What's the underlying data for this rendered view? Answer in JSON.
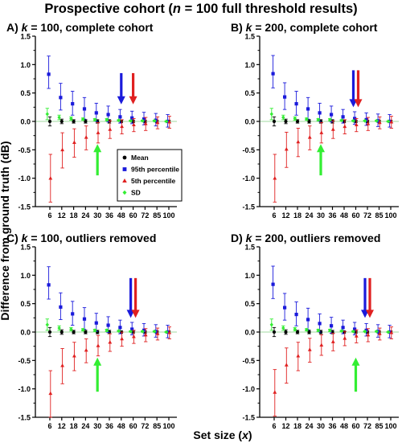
{
  "figure": {
    "title": "Prospective cohort (n = 100 full threshold results)",
    "title_parts": [
      "Prospective cohort (",
      "n",
      " = 100 full threshold results)"
    ],
    "xlabel": "Set size (x)",
    "xlabel_parts": [
      "Set size (",
      "x",
      ")"
    ],
    "ylabel": "Difference from ground truth (dB)"
  },
  "legend": {
    "items": [
      {
        "label": "Mean",
        "color": "#000000",
        "marker": "circle"
      },
      {
        "label": "95th percentile",
        "color": "#1a1adb",
        "marker": "square"
      },
      {
        "label": "5th percentile",
        "color": "#e02020",
        "marker": "triangle"
      },
      {
        "label": "SD",
        "color": "#33ee33",
        "marker": "diamond"
      }
    ]
  },
  "colors": {
    "mean": "#000000",
    "p95": "#1a1adb",
    "p5": "#e02020",
    "sd": "#33ee33",
    "zero_line": "#a0d8a0"
  },
  "chart_data": [
    {
      "type": "scatter",
      "title": "A) k = 100, complete cohort",
      "title_parts": [
        "A) ",
        "k",
        " = 100, complete cohort"
      ],
      "xlabel": "Set size (x)",
      "ylabel": "Difference from ground truth (dB)",
      "categories": [
        "6",
        "12",
        "18",
        "24",
        "30",
        "36",
        "48",
        "60",
        "72",
        "85",
        "100"
      ],
      "ylim": [
        -1.5,
        1.5
      ],
      "yticks": [
        "-1.5",
        "-1.0",
        "-0.5",
        "0.0",
        "0.5",
        "1.0",
        "1.5"
      ],
      "series": [
        {
          "name": "Mean",
          "values": [
            0.0,
            0.0,
            0.0,
            0.0,
            0.0,
            0.0,
            0.0,
            0.0,
            0.0,
            0.0,
            0.0
          ],
          "err_low": [
            0.08,
            0.04,
            0.03,
            0.03,
            0.03,
            0.03,
            0.02,
            0.02,
            0.02,
            0.02,
            0.02
          ],
          "err_high": [
            0.08,
            0.04,
            0.03,
            0.03,
            0.03,
            0.03,
            0.02,
            0.02,
            0.02,
            0.02,
            0.02
          ]
        },
        {
          "name": "95th percentile",
          "values": [
            0.83,
            0.42,
            0.31,
            0.22,
            0.15,
            0.12,
            0.08,
            0.06,
            0.04,
            0.02,
            0.0
          ],
          "err_low": [
            0.25,
            0.22,
            0.2,
            0.18,
            0.15,
            0.13,
            0.11,
            0.1,
            0.1,
            0.1,
            0.1
          ],
          "err_high": [
            0.32,
            0.25,
            0.22,
            0.2,
            0.17,
            0.15,
            0.13,
            0.12,
            0.12,
            0.12,
            0.12
          ]
        },
        {
          "name": "5th percentile",
          "values": [
            -1.0,
            -0.5,
            -0.37,
            -0.28,
            -0.2,
            -0.14,
            -0.09,
            -0.06,
            -0.04,
            -0.02,
            -0.01
          ],
          "err_low": [
            0.42,
            0.32,
            0.26,
            0.22,
            0.18,
            0.16,
            0.13,
            0.12,
            0.12,
            0.11,
            0.11
          ],
          "err_high": [
            0.42,
            0.3,
            0.24,
            0.2,
            0.18,
            0.15,
            0.12,
            0.11,
            0.11,
            0.1,
            0.1
          ]
        },
        {
          "name": "SD",
          "values": [
            0.13,
            0.07,
            0.05,
            0.04,
            0.03,
            0.03,
            0.02,
            0.01,
            0.01,
            0.01,
            0.0
          ],
          "err_low": [
            0.1,
            0.04,
            0.03,
            0.02,
            0.02,
            0.02,
            0.01,
            0.01,
            0.01,
            0.01,
            0.01
          ],
          "err_high": [
            0.1,
            0.04,
            0.03,
            0.02,
            0.02,
            0.02,
            0.01,
            0.01,
            0.01,
            0.01,
            0.01
          ]
        }
      ],
      "arrows": [
        {
          "color": "blue",
          "x": "48",
          "direction": "down",
          "from": 0.85,
          "to": 0.3
        },
        {
          "color": "red",
          "x": "60",
          "direction": "down",
          "from": 0.85,
          "to": 0.3
        },
        {
          "color": "green",
          "x": "30",
          "direction": "up",
          "from": -0.95,
          "to": -0.4
        }
      ],
      "legend_position": "center"
    },
    {
      "type": "scatter",
      "title": "B) k = 200, complete cohort",
      "title_parts": [
        "B) ",
        "k",
        " = 200, complete cohort"
      ],
      "xlabel": "Set size (x)",
      "ylabel": "Difference from ground truth (dB)",
      "categories": [
        "6",
        "12",
        "18",
        "24",
        "30",
        "36",
        "48",
        "60",
        "72",
        "85",
        "100"
      ],
      "ylim": [
        -1.5,
        1.5
      ],
      "yticks": [
        "-1.5",
        "-1.0",
        "-0.5",
        "0.0",
        "0.5",
        "1.0",
        "1.5"
      ],
      "series": [
        {
          "name": "Mean",
          "values": [
            0.0,
            0.0,
            0.0,
            0.0,
            0.0,
            0.0,
            0.0,
            0.0,
            0.0,
            0.0,
            0.0
          ],
          "err_low": [
            0.08,
            0.04,
            0.03,
            0.03,
            0.03,
            0.03,
            0.02,
            0.02,
            0.02,
            0.02,
            0.02
          ],
          "err_high": [
            0.08,
            0.04,
            0.03,
            0.03,
            0.03,
            0.03,
            0.02,
            0.02,
            0.02,
            0.02,
            0.02
          ]
        },
        {
          "name": "95th percentile",
          "values": [
            0.84,
            0.43,
            0.31,
            0.22,
            0.15,
            0.12,
            0.08,
            0.05,
            0.03,
            0.01,
            0.0
          ],
          "err_low": [
            0.25,
            0.22,
            0.2,
            0.18,
            0.15,
            0.13,
            0.11,
            0.1,
            0.1,
            0.1,
            0.1
          ],
          "err_high": [
            0.32,
            0.25,
            0.22,
            0.2,
            0.17,
            0.15,
            0.13,
            0.12,
            0.12,
            0.12,
            0.12
          ]
        },
        {
          "name": "5th percentile",
          "values": [
            -1.0,
            -0.49,
            -0.36,
            -0.28,
            -0.2,
            -0.14,
            -0.09,
            -0.06,
            -0.04,
            -0.02,
            -0.01
          ],
          "err_low": [
            0.42,
            0.32,
            0.26,
            0.22,
            0.18,
            0.16,
            0.13,
            0.12,
            0.12,
            0.11,
            0.11
          ],
          "err_high": [
            0.42,
            0.3,
            0.24,
            0.2,
            0.18,
            0.15,
            0.12,
            0.11,
            0.11,
            0.1,
            0.1
          ]
        },
        {
          "name": "SD",
          "values": [
            0.13,
            0.07,
            0.05,
            0.04,
            0.03,
            0.03,
            0.02,
            0.01,
            0.01,
            0.01,
            0.0
          ],
          "err_low": [
            0.1,
            0.04,
            0.03,
            0.02,
            0.02,
            0.02,
            0.01,
            0.01,
            0.01,
            0.01,
            0.01
          ],
          "err_high": [
            0.1,
            0.04,
            0.03,
            0.02,
            0.02,
            0.02,
            0.01,
            0.01,
            0.01,
            0.01,
            0.01
          ]
        }
      ],
      "arrows": [
        {
          "color": "blue",
          "x": "60",
          "direction": "down",
          "from": 0.9,
          "to": 0.25
        },
        {
          "color": "red",
          "x": "60",
          "direction": "down",
          "from": 0.9,
          "to": 0.25
        },
        {
          "color": "green",
          "x": "30",
          "direction": "up",
          "from": -0.95,
          "to": -0.4
        }
      ]
    },
    {
      "type": "scatter",
      "title": "C) k = 100, outliers removed",
      "title_parts": [
        "C) ",
        "k",
        " = 100, outliers removed"
      ],
      "xlabel": "Set size (x)",
      "ylabel": "Difference from ground truth (dB)",
      "categories": [
        "6",
        "12",
        "18",
        "24",
        "30",
        "36",
        "48",
        "60",
        "72",
        "85",
        "100"
      ],
      "ylim": [
        -1.5,
        1.5
      ],
      "yticks": [
        "-1.5",
        "-1.0",
        "-0.5",
        "0.0",
        "0.5",
        "1.0",
        "1.5"
      ],
      "series": [
        {
          "name": "Mean",
          "values": [
            0.0,
            0.0,
            0.0,
            0.0,
            0.0,
            0.0,
            0.0,
            0.0,
            0.0,
            0.0,
            0.0
          ],
          "err_low": [
            0.08,
            0.04,
            0.03,
            0.03,
            0.03,
            0.03,
            0.02,
            0.02,
            0.02,
            0.02,
            0.02
          ],
          "err_high": [
            0.08,
            0.04,
            0.03,
            0.03,
            0.03,
            0.03,
            0.02,
            0.02,
            0.02,
            0.02,
            0.02
          ]
        },
        {
          "name": "95th percentile",
          "values": [
            0.83,
            0.44,
            0.32,
            0.23,
            0.16,
            0.12,
            0.08,
            0.05,
            0.03,
            0.01,
            0.0
          ],
          "err_low": [
            0.25,
            0.22,
            0.2,
            0.18,
            0.15,
            0.13,
            0.11,
            0.1,
            0.1,
            0.1,
            0.1
          ],
          "err_high": [
            0.32,
            0.25,
            0.22,
            0.2,
            0.17,
            0.15,
            0.13,
            0.12,
            0.12,
            0.12,
            0.12
          ]
        },
        {
          "name": "5th percentile",
          "values": [
            -1.08,
            -0.59,
            -0.42,
            -0.32,
            -0.24,
            -0.18,
            -0.12,
            -0.08,
            -0.05,
            -0.03,
            -0.01
          ],
          "err_low": [
            0.42,
            0.32,
            0.26,
            0.22,
            0.18,
            0.16,
            0.13,
            0.12,
            0.12,
            0.11,
            0.11
          ],
          "err_high": [
            0.4,
            0.3,
            0.24,
            0.2,
            0.18,
            0.15,
            0.12,
            0.11,
            0.11,
            0.1,
            0.1
          ]
        },
        {
          "name": "SD",
          "values": [
            0.13,
            0.07,
            0.05,
            0.04,
            0.03,
            0.03,
            0.02,
            0.01,
            0.01,
            0.01,
            0.0
          ],
          "err_low": [
            0.1,
            0.04,
            0.03,
            0.02,
            0.02,
            0.02,
            0.01,
            0.01,
            0.01,
            0.01,
            0.01
          ],
          "err_high": [
            0.1,
            0.04,
            0.03,
            0.02,
            0.02,
            0.02,
            0.01,
            0.01,
            0.01,
            0.01,
            0.01
          ]
        }
      ],
      "arrows": [
        {
          "color": "blue",
          "x": "60",
          "direction": "down",
          "from": 0.95,
          "to": 0.25
        },
        {
          "color": "red",
          "x": "60",
          "direction": "down",
          "from": 0.95,
          "to": 0.25
        },
        {
          "color": "green",
          "x": "30",
          "direction": "up",
          "from": -1.05,
          "to": -0.45
        }
      ]
    },
    {
      "type": "scatter",
      "title": "D) k = 200, outliers removed",
      "title_parts": [
        "D) ",
        "k",
        " = 200, outliers removed"
      ],
      "xlabel": "Set size (x)",
      "ylabel": "Difference from ground truth (dB)",
      "categories": [
        "6",
        "12",
        "18",
        "24",
        "30",
        "36",
        "48",
        "60",
        "72",
        "85",
        "100"
      ],
      "ylim": [
        -1.5,
        1.5
      ],
      "yticks": [
        "-1.5",
        "-1.0",
        "-0.5",
        "0.0",
        "0.5",
        "1.0",
        "1.5"
      ],
      "series": [
        {
          "name": "Mean",
          "values": [
            0.0,
            0.0,
            0.0,
            0.0,
            0.0,
            0.0,
            0.0,
            0.0,
            0.0,
            0.0,
            0.0
          ],
          "err_low": [
            0.08,
            0.04,
            0.03,
            0.03,
            0.03,
            0.03,
            0.02,
            0.02,
            0.02,
            0.02,
            0.02
          ],
          "err_high": [
            0.08,
            0.04,
            0.03,
            0.03,
            0.03,
            0.03,
            0.02,
            0.02,
            0.02,
            0.02,
            0.02
          ]
        },
        {
          "name": "95th percentile",
          "values": [
            0.84,
            0.43,
            0.31,
            0.22,
            0.15,
            0.11,
            0.08,
            0.05,
            0.03,
            0.01,
            0.0
          ],
          "err_low": [
            0.25,
            0.22,
            0.2,
            0.18,
            0.15,
            0.13,
            0.11,
            0.1,
            0.1,
            0.1,
            0.1
          ],
          "err_high": [
            0.32,
            0.25,
            0.22,
            0.2,
            0.17,
            0.15,
            0.13,
            0.12,
            0.12,
            0.12,
            0.12
          ]
        },
        {
          "name": "5th percentile",
          "values": [
            -1.06,
            -0.58,
            -0.42,
            -0.31,
            -0.23,
            -0.17,
            -0.11,
            -0.07,
            -0.05,
            -0.03,
            -0.01
          ],
          "err_low": [
            0.42,
            0.32,
            0.26,
            0.22,
            0.18,
            0.16,
            0.13,
            0.12,
            0.12,
            0.11,
            0.11
          ],
          "err_high": [
            0.4,
            0.3,
            0.24,
            0.2,
            0.18,
            0.15,
            0.12,
            0.11,
            0.11,
            0.1,
            0.1
          ]
        },
        {
          "name": "SD",
          "values": [
            0.13,
            0.07,
            0.05,
            0.04,
            0.03,
            0.03,
            0.02,
            0.01,
            0.01,
            0.01,
            0.0
          ],
          "err_low": [
            0.1,
            0.04,
            0.03,
            0.02,
            0.02,
            0.02,
            0.01,
            0.01,
            0.01,
            0.01,
            0.01
          ],
          "err_high": [
            0.1,
            0.04,
            0.03,
            0.02,
            0.02,
            0.02,
            0.01,
            0.01,
            0.01,
            0.01,
            0.01
          ]
        }
      ],
      "arrows": [
        {
          "color": "blue",
          "x": "72",
          "direction": "down",
          "from": 0.95,
          "to": 0.25
        },
        {
          "color": "red",
          "x": "72",
          "direction": "down",
          "from": 0.95,
          "to": 0.25
        },
        {
          "color": "green",
          "x": "60",
          "direction": "up",
          "from": -1.05,
          "to": -0.45
        }
      ]
    }
  ]
}
